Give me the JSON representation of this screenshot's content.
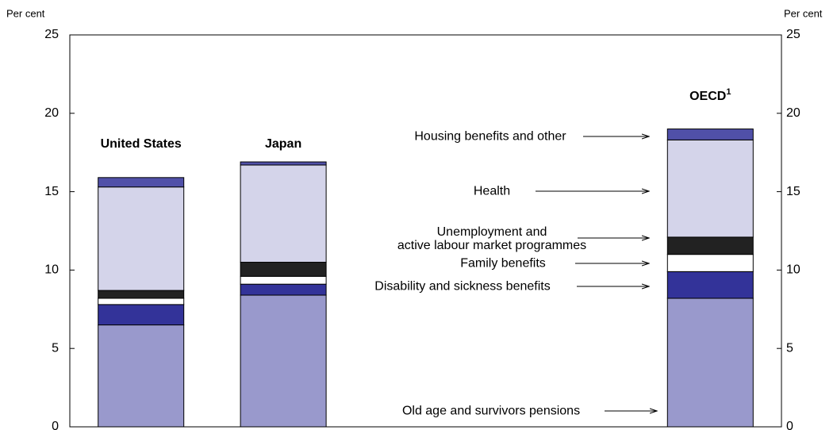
{
  "chart_data": {
    "type": "stacked-bar",
    "ylabel": "Per cent",
    "y2label": "Per cent",
    "categories": [
      "United States",
      "Japan",
      null,
      null,
      "OECD"
    ],
    "footnote_marks": [
      null,
      null,
      null,
      null,
      "1"
    ],
    "ylim": [
      0,
      25
    ],
    "yticks": [
      0,
      5,
      10,
      15,
      20,
      25
    ],
    "series": [
      {
        "name": "Old age and survivors pensions",
        "color": "#9999cc",
        "values": [
          6.5,
          8.4,
          null,
          null,
          8.2
        ]
      },
      {
        "name": "Disability and sickness benefits",
        "color": "#333399",
        "values": [
          1.3,
          0.7,
          null,
          null,
          1.7
        ]
      },
      {
        "name": "Family benefits",
        "color": "#ffffff",
        "values": [
          0.4,
          0.5,
          null,
          null,
          1.1
        ]
      },
      {
        "name": "Unemployment and\nactive labour market programmes",
        "color": "#222222",
        "values": [
          0.5,
          0.9,
          null,
          null,
          1.1
        ]
      },
      {
        "name": "Health",
        "color": "#d4d4ea",
        "values": [
          6.6,
          6.2,
          null,
          null,
          6.2
        ]
      },
      {
        "name": "Housing benefits and other",
        "color": "#5050a8",
        "values": [
          0.6,
          0.2,
          null,
          null,
          0.7
        ]
      }
    ]
  }
}
